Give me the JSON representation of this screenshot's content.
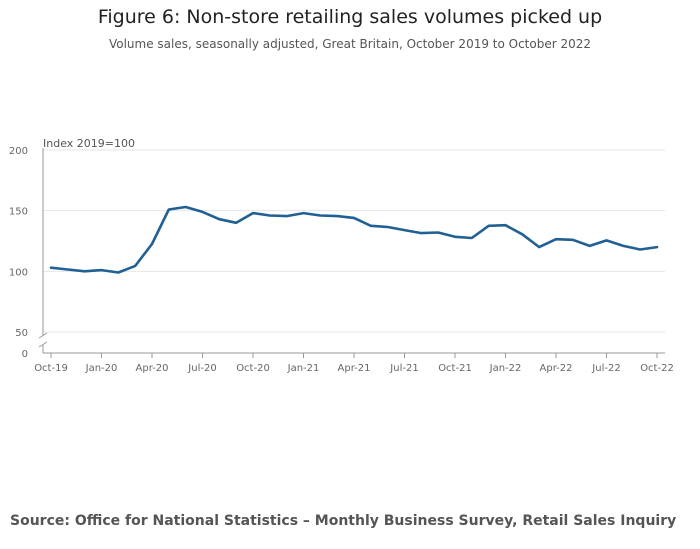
{
  "title": "Figure 6: Non-store retailing sales volumes picked up",
  "subtitle": "Volume sales, seasonally adjusted, Great Britain, October 2019 to October 2022",
  "source": "Source: Office for National Statistics – Monthly Business Survey, Retail Sales Inquiry",
  "colors": {
    "line": "#206095",
    "grid": "#e6e6e6",
    "axis": "#999999"
  },
  "chart_data": {
    "type": "line",
    "ylabel": "Index 2019=100",
    "ylim": [
      0,
      200
    ],
    "y_axis_break": [
      0,
      50
    ],
    "y_ticks": [
      0,
      50,
      100,
      150,
      200
    ],
    "grid": true,
    "x_tick_labels": [
      "Oct-19",
      "Jan-20",
      "Apr-20",
      "Jul-20",
      "Oct-20",
      "Jan-21",
      "Apr-21",
      "Jul-21",
      "Oct-21",
      "Jan-22",
      "Apr-22",
      "Jul-22",
      "Oct-22"
    ],
    "x": [
      "Oct-19",
      "Nov-19",
      "Dec-19",
      "Jan-20",
      "Feb-20",
      "Mar-20",
      "Apr-20",
      "May-20",
      "Jun-20",
      "Jul-20",
      "Aug-20",
      "Sep-20",
      "Oct-20",
      "Nov-20",
      "Dec-20",
      "Jan-21",
      "Feb-21",
      "Mar-21",
      "Apr-21",
      "May-21",
      "Jun-21",
      "Jul-21",
      "Aug-21",
      "Sep-21",
      "Oct-21",
      "Nov-21",
      "Dec-21",
      "Jan-22",
      "Feb-22",
      "Mar-22",
      "Apr-22",
      "May-22",
      "Jun-22",
      "Jul-22",
      "Aug-22",
      "Sep-22",
      "Oct-22"
    ],
    "series": [
      {
        "values": [
          103,
          101.5,
          100,
          101,
          99,
          104.5,
          122.5,
          151,
          153,
          149,
          143,
          140,
          148,
          146,
          145.5,
          148,
          146,
          145.5,
          144,
          137.5,
          136.5,
          134,
          131.5,
          132,
          128.5,
          127.5,
          137.5,
          138,
          130.5,
          120,
          126.5,
          126,
          121,
          125.5,
          121,
          118,
          120
        ]
      }
    ]
  }
}
